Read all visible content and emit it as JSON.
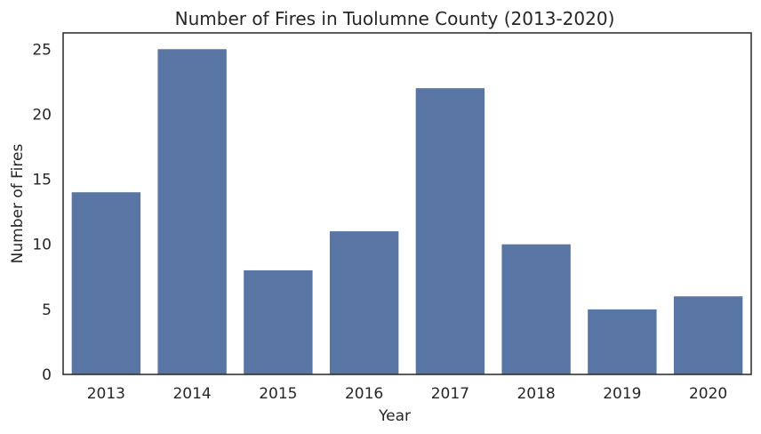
{
  "chart_data": {
    "type": "bar",
    "title": "Number of Fires in Tuolumne County (2013-2020)",
    "xlabel": "Year",
    "ylabel": "Number of Fires",
    "categories": [
      "2013",
      "2014",
      "2015",
      "2016",
      "2017",
      "2018",
      "2019",
      "2020"
    ],
    "values": [
      14,
      25,
      8,
      11,
      22,
      10,
      5,
      6
    ],
    "ylim": [
      0,
      26.25
    ],
    "yticks": [
      0,
      5,
      10,
      15,
      20,
      25
    ],
    "grid": false,
    "bar_color": "#5875a4"
  }
}
